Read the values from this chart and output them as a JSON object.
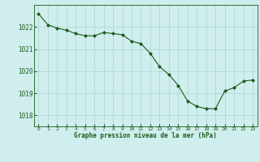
{
  "x": [
    0,
    1,
    2,
    3,
    4,
    5,
    6,
    7,
    8,
    9,
    10,
    11,
    12,
    13,
    14,
    15,
    16,
    17,
    18,
    19,
    20,
    21,
    22,
    23
  ],
  "y": [
    1022.6,
    1022.1,
    1021.95,
    1021.85,
    1021.7,
    1021.6,
    1021.6,
    1021.75,
    1021.7,
    1021.65,
    1021.35,
    1021.25,
    1020.8,
    1020.2,
    1019.85,
    1019.35,
    1018.65,
    1018.4,
    1018.3,
    1018.3,
    1019.1,
    1019.25,
    1019.55,
    1019.6
  ],
  "line_color": "#1a5c1a",
  "marker_color": "#1a5c1a",
  "bg_color": "#d0eeee",
  "grid_color": "#b0d8d8",
  "xlabel": "Graphe pression niveau de la mer (hPa)",
  "xlabel_color": "#1a5c1a",
  "tick_color": "#1a5c1a",
  "ylim": [
    1017.5,
    1023.0
  ],
  "yticks": [
    1018,
    1019,
    1020,
    1021,
    1022
  ],
  "xticks": [
    0,
    1,
    2,
    3,
    4,
    5,
    6,
    7,
    8,
    9,
    10,
    11,
    12,
    13,
    14,
    15,
    16,
    17,
    18,
    19,
    20,
    21,
    22,
    23
  ]
}
